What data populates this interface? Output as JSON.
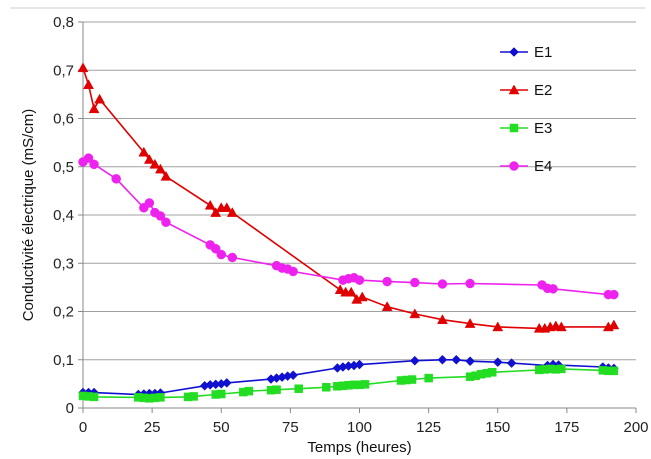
{
  "chart_data": {
    "type": "line",
    "xlabel": "Temps (heures)",
    "ylabel": "Conductivité électrique (mS/cm)",
    "xlim": [
      0,
      200
    ],
    "ylim": [
      0,
      0.8
    ],
    "x_ticks": [
      0,
      25,
      50,
      75,
      100,
      125,
      150,
      175,
      200
    ],
    "x_tick_labels": [
      "0",
      "25",
      "50",
      "75",
      "100",
      "125",
      "150",
      "175",
      "200"
    ],
    "y_ticks": [
      0,
      0.1,
      0.2,
      0.3,
      0.4,
      0.5,
      0.6,
      0.7,
      0.8
    ],
    "y_tick_labels": [
      "0",
      "0,1",
      "0,2",
      "0,3",
      "0,4",
      "0,5",
      "0,6",
      "0,7",
      "0,8"
    ],
    "grid": "horizontal",
    "legend_position": "top-right",
    "series": [
      {
        "name": "E1",
        "color": "#1010d0",
        "marker": "diamond",
        "x": [
          0,
          2,
          4,
          20,
          22,
          24,
          26,
          28,
          44,
          46,
          48,
          50,
          52,
          68,
          70,
          72,
          74,
          76,
          92,
          94,
          96,
          98,
          100,
          120,
          130,
          135,
          140,
          150,
          155,
          168,
          170,
          172,
          188,
          190,
          192
        ],
        "y": [
          0.032,
          0.032,
          0.032,
          0.028,
          0.029,
          0.03,
          0.03,
          0.031,
          0.046,
          0.048,
          0.049,
          0.05,
          0.052,
          0.06,
          0.062,
          0.064,
          0.066,
          0.068,
          0.083,
          0.085,
          0.087,
          0.088,
          0.09,
          0.098,
          0.1,
          0.1,
          0.097,
          0.095,
          0.093,
          0.088,
          0.09,
          0.089,
          0.085,
          0.083,
          0.082
        ]
      },
      {
        "name": "E2",
        "color": "#e00000",
        "marker": "triangle",
        "x": [
          0,
          2,
          4,
          6,
          22,
          24,
          26,
          28,
          30,
          46,
          48,
          50,
          52,
          54,
          93,
          95,
          97,
          99,
          101,
          110,
          120,
          130,
          140,
          150,
          165,
          167,
          169,
          171,
          173,
          190,
          192
        ],
        "y": [
          0.705,
          0.67,
          0.62,
          0.64,
          0.53,
          0.515,
          0.505,
          0.495,
          0.48,
          0.42,
          0.405,
          0.415,
          0.415,
          0.405,
          0.245,
          0.24,
          0.24,
          0.225,
          0.23,
          0.21,
          0.195,
          0.183,
          0.175,
          0.168,
          0.165,
          0.165,
          0.168,
          0.17,
          0.168,
          0.168,
          0.172
        ]
      },
      {
        "name": "E3",
        "color": "#22dd22",
        "marker": "square",
        "x": [
          0,
          2,
          4,
          20,
          22,
          24,
          26,
          28,
          38,
          40,
          48,
          50,
          58,
          60,
          68,
          70,
          78,
          88,
          92,
          94,
          96,
          98,
          100,
          102,
          115,
          117,
          119,
          125,
          140,
          142,
          144,
          146,
          148,
          165,
          167,
          169,
          171,
          173,
          188,
          190,
          192
        ],
        "y": [
          0.025,
          0.024,
          0.023,
          0.022,
          0.021,
          0.02,
          0.021,
          0.022,
          0.023,
          0.024,
          0.028,
          0.029,
          0.033,
          0.035,
          0.037,
          0.038,
          0.04,
          0.043,
          0.045,
          0.046,
          0.047,
          0.048,
          0.048,
          0.049,
          0.057,
          0.058,
          0.059,
          0.062,
          0.065,
          0.067,
          0.07,
          0.072,
          0.074,
          0.079,
          0.08,
          0.081,
          0.08,
          0.081,
          0.078,
          0.077,
          0.077
        ]
      },
      {
        "name": "E4",
        "color": "#ee22ee",
        "marker": "circle",
        "x": [
          0,
          2,
          4,
          12,
          22,
          24,
          26,
          28,
          30,
          46,
          48,
          50,
          54,
          70,
          72,
          74,
          76,
          94,
          96,
          98,
          100,
          110,
          120,
          130,
          140,
          166,
          168,
          170,
          190,
          192
        ],
        "y": [
          0.51,
          0.518,
          0.505,
          0.475,
          0.415,
          0.425,
          0.405,
          0.398,
          0.385,
          0.338,
          0.33,
          0.318,
          0.312,
          0.295,
          0.29,
          0.288,
          0.283,
          0.265,
          0.268,
          0.27,
          0.265,
          0.262,
          0.26,
          0.257,
          0.258,
          0.255,
          0.248,
          0.247,
          0.235,
          0.235
        ]
      }
    ]
  }
}
